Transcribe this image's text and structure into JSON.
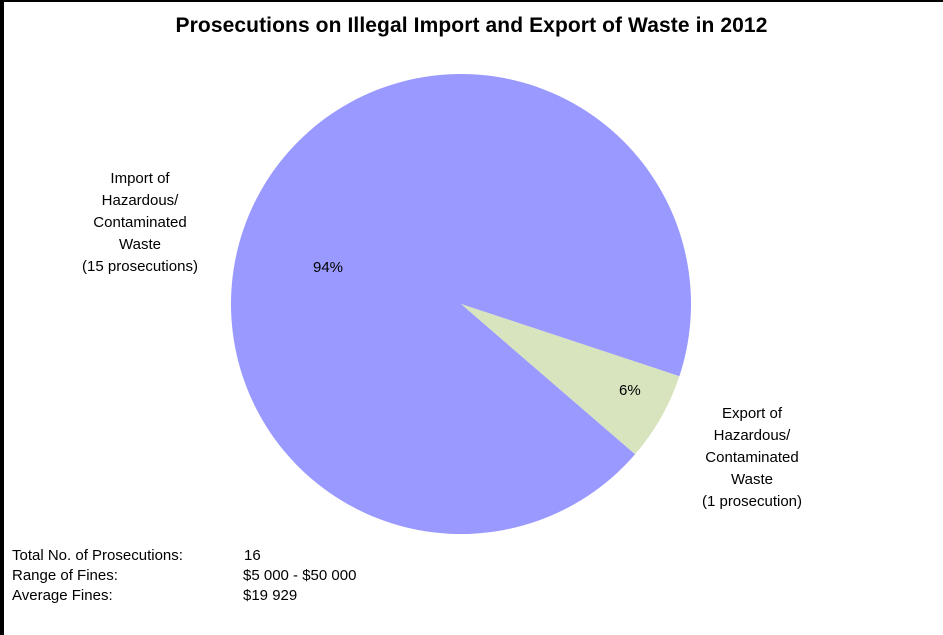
{
  "chart_data": {
    "type": "pie",
    "title": "Prosecutions on Illegal Import and Export of Waste in 2012",
    "categories": [
      "Import of Hazardous/ Contaminated Waste",
      "Export of Hazardous/ Contaminated Waste"
    ],
    "values": [
      15,
      1
    ],
    "percent_labels": [
      "94%",
      "6%"
    ],
    "colors": [
      "#9999ff",
      "#d7e4bd"
    ],
    "legend": "none (category labels placed beside slices)",
    "slices": [
      {
        "name": "Import",
        "label_lines": [
          "Import of",
          "Hazardous/",
          "Contaminated",
          "Waste",
          "(15 prosecutions)"
        ],
        "value": 15,
        "percent": "94%",
        "color": "#9999ff"
      },
      {
        "name": "Export",
        "label_lines": [
          "Export of",
          "Hazardous/",
          "Contaminated",
          "Waste",
          "(1 prosecution)"
        ],
        "value": 1,
        "percent": "6%",
        "color": "#d7e4bd"
      }
    ]
  },
  "stats": {
    "total_label": "Total No. of Prosecutions:",
    "total_value": "16",
    "range_label": "Range of Fines:",
    "range_value": "$5 000 - $50 000",
    "average_label": "Average Fines:",
    "average_value": "$19 929"
  }
}
